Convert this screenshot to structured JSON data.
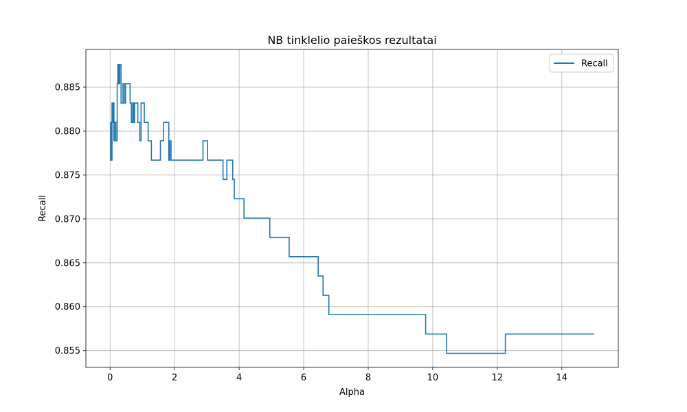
{
  "chart_data": {
    "type": "line",
    "title": "NB tinklelio paieškos rezultatai",
    "xlabel": "Alpha",
    "ylabel": "Recall",
    "xlim": [
      -0.75,
      15.75
    ],
    "ylim": [
      0.8531,
      0.8893
    ],
    "x_ticks": [
      0,
      2,
      4,
      6,
      8,
      10,
      12,
      14
    ],
    "y_ticks": [
      0.855,
      0.86,
      0.865,
      0.87,
      0.875,
      0.88,
      0.885
    ],
    "x_tick_labels": [
      "0",
      "2",
      "4",
      "6",
      "8",
      "10",
      "12",
      "14"
    ],
    "y_tick_labels": [
      "0.855",
      "0.860",
      "0.865",
      "0.870",
      "0.875",
      "0.880",
      "0.885"
    ],
    "grid": true,
    "legend_position": "top-right",
    "series": [
      {
        "name": "Recall",
        "color": "#1f77b4",
        "step": true,
        "points": [
          [
            0.0,
            0.8767
          ],
          [
            0.02,
            0.881
          ],
          [
            0.04,
            0.8767
          ],
          [
            0.06,
            0.8832
          ],
          [
            0.08,
            0.881
          ],
          [
            0.1,
            0.8832
          ],
          [
            0.12,
            0.8789
          ],
          [
            0.14,
            0.881
          ],
          [
            0.18,
            0.8789
          ],
          [
            0.22,
            0.8854
          ],
          [
            0.24,
            0.8876
          ],
          [
            0.27,
            0.8854
          ],
          [
            0.3,
            0.8876
          ],
          [
            0.34,
            0.8832
          ],
          [
            0.4,
            0.8854
          ],
          [
            0.44,
            0.8832
          ],
          [
            0.48,
            0.8854
          ],
          [
            0.62,
            0.8832
          ],
          [
            0.66,
            0.881
          ],
          [
            0.7,
            0.8832
          ],
          [
            0.73,
            0.881
          ],
          [
            0.76,
            0.8832
          ],
          [
            0.86,
            0.881
          ],
          [
            0.92,
            0.8789
          ],
          [
            0.96,
            0.8832
          ],
          [
            1.06,
            0.881
          ],
          [
            1.18,
            0.8789
          ],
          [
            1.28,
            0.8767
          ],
          [
            1.56,
            0.8789
          ],
          [
            1.66,
            0.881
          ],
          [
            1.82,
            0.8767
          ],
          [
            1.85,
            0.8789
          ],
          [
            1.89,
            0.8767
          ],
          [
            2.88,
            0.8789
          ],
          [
            3.02,
            0.8767
          ],
          [
            3.5,
            0.8745
          ],
          [
            3.62,
            0.8767
          ],
          [
            3.8,
            0.8745
          ],
          [
            3.85,
            0.8723
          ],
          [
            4.15,
            0.8701
          ],
          [
            4.95,
            0.8679
          ],
          [
            5.55,
            0.8657
          ],
          [
            6.45,
            0.8635
          ],
          [
            6.6,
            0.8613
          ],
          [
            6.78,
            0.8591
          ],
          [
            9.78,
            0.8569
          ],
          [
            10.43,
            0.8547
          ],
          [
            12.25,
            0.8569
          ],
          [
            15.0,
            0.8569
          ]
        ]
      }
    ]
  }
}
